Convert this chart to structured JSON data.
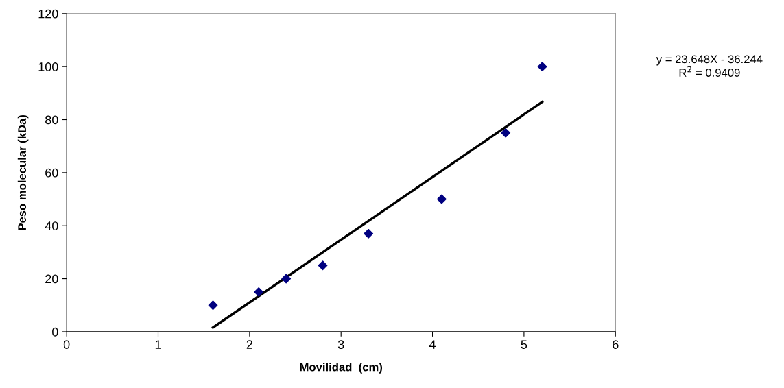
{
  "chart_data": {
    "type": "scatter",
    "xlabel": "Movilidad  (cm)",
    "ylabel": "Peso molecular (kDa)",
    "xlim": [
      0,
      6
    ],
    "xticks": [
      0,
      1,
      2,
      3,
      4,
      5,
      6
    ],
    "ylim": [
      0,
      120
    ],
    "yticks": [
      0,
      20,
      40,
      60,
      80,
      100,
      120
    ],
    "grid": false,
    "legend": false,
    "marker": "diamond",
    "series": [
      {
        "color": "#000080",
        "x": [
          1.6,
          2.1,
          2.4,
          2.8,
          3.3,
          4.1,
          4.8,
          5.2
        ],
        "values": [
          10,
          15,
          20,
          25,
          37,
          50,
          75,
          100
        ]
      },
      {
        "type": "line",
        "color": "#000000",
        "marker": "none",
        "line_style": "solid",
        "x": [
          1.6,
          5.2
        ],
        "values": [
          1.6,
          86.7
        ]
      }
    ],
    "annotations": [
      "y = 23.648X - 36.244",
      "R$^{2}$ = 0.9409"
    ]
  }
}
